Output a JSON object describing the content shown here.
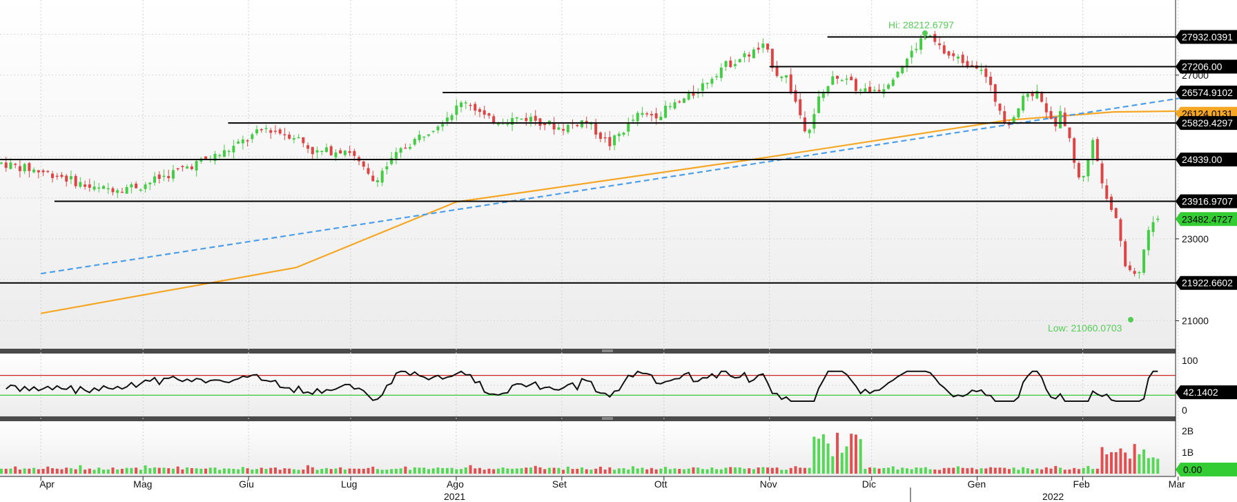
{
  "chart_data": {
    "type": "candlestick",
    "title": "",
    "x_axis": {
      "months": [
        "Apr",
        "Mag",
        "Giu",
        "Lug",
        "Ago",
        "Set",
        "Ott",
        "Nov",
        "Dic",
        "Gen",
        "Feb",
        "Mar"
      ],
      "years": [
        "2021",
        "2022"
      ]
    },
    "price_panel": {
      "y_ticks": [
        21000,
        23000,
        27000
      ],
      "ylim": [
        20400,
        28700
      ],
      "horizontal_levels": [
        {
          "label": "27932.0391",
          "value": 27932.0391
        },
        {
          "label": "27206.00",
          "value": 27206.0
        },
        {
          "label": "26574.9102",
          "value": 26574.9102
        },
        {
          "label": "26124.0131",
          "value": 26124.0131
        },
        {
          "label": "25829.4297",
          "value": 25829.4297
        },
        {
          "label": "24939.00",
          "value": 24939.0
        },
        {
          "label": "23916.9707",
          "value": 23916.9707
        },
        {
          "label": "21922.6602",
          "value": 21922.6602
        }
      ],
      "last_price": {
        "label": "23482.4727",
        "value": 23482.4727
      },
      "high_annotation": "Hi: 28212.6797",
      "low_annotation": "Low: 21060.0703",
      "high": 28212.6797,
      "low": 21060.0703,
      "series": [
        {
          "type": "candlestick",
          "up_color": "#44cc44",
          "down_color": "#dd4444"
        },
        {
          "type": "line",
          "style": "solid",
          "color": "#f5a623",
          "points": [
            {
              "x": "2021-04-01",
              "y": 21180
            },
            {
              "x": "2021-06-15",
              "y": 22300
            },
            {
              "x": "2021-08-01",
              "y": 23900
            },
            {
              "x": "2021-11-01",
              "y": 25000
            },
            {
              "x": "2022-01-10",
              "y": 25900
            },
            {
              "x": "2022-02-10",
              "y": 26100
            },
            {
              "x": "2022-03-05",
              "y": 26124
            }
          ]
        },
        {
          "type": "line",
          "style": "dashed",
          "color": "#4a9eea",
          "points": [
            {
              "x": "2021-04-01",
              "y": 22150
            },
            {
              "x": "2022-03-05",
              "y": 26480
            }
          ]
        }
      ]
    },
    "rsi_panel": {
      "y_ticks": [
        100,
        0
      ],
      "last_value": "42.1402",
      "overbought": 70,
      "oversold": 30
    },
    "volume_panel": {
      "y_ticks": [
        "2B",
        "1B"
      ],
      "last_value": "0.00"
    }
  }
}
